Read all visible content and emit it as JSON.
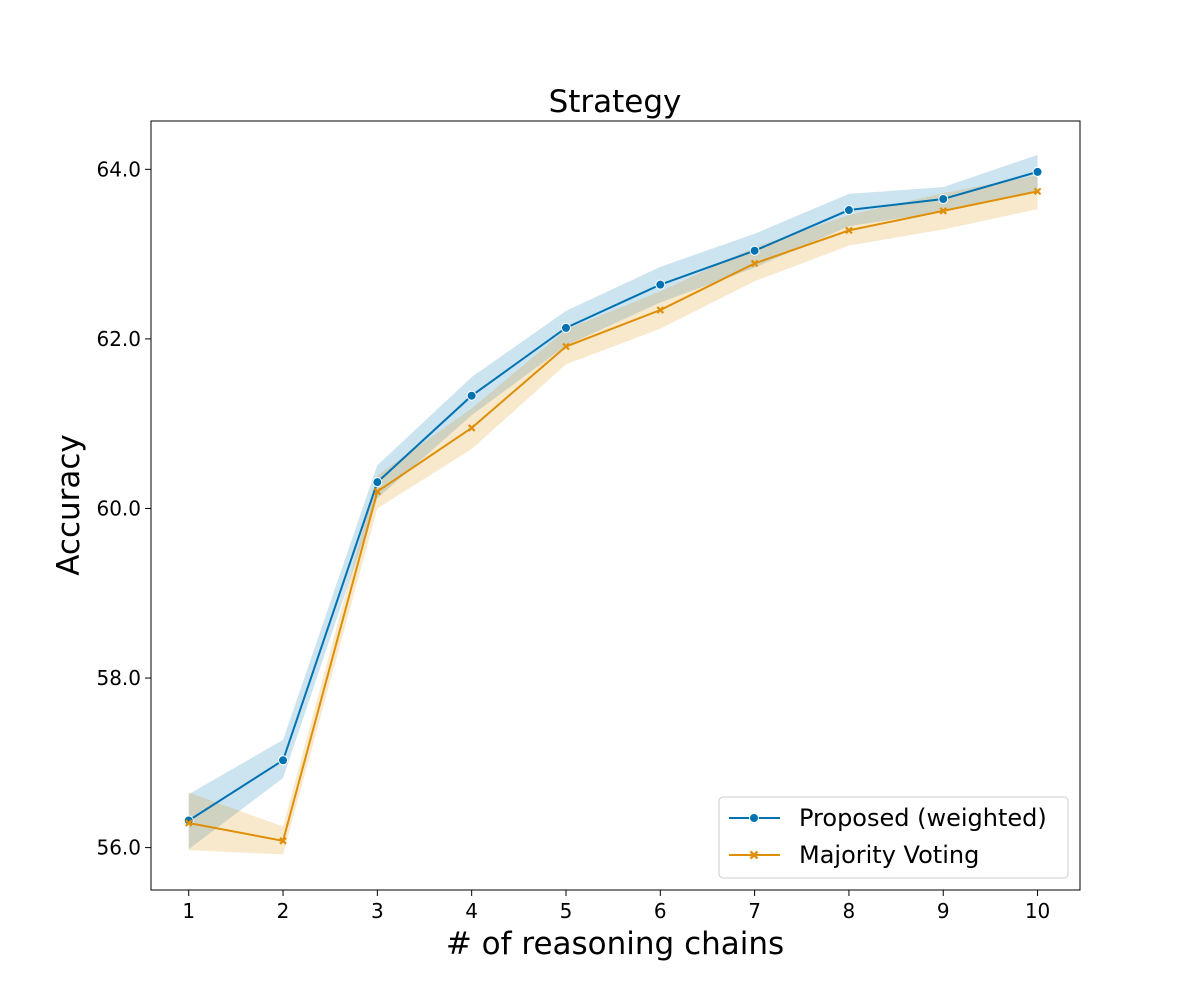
{
  "chart_data": {
    "type": "line",
    "title": "Strategy",
    "xlabel": "# of reasoning chains",
    "ylabel": "Accuracy",
    "x": [
      1,
      2,
      3,
      4,
      5,
      6,
      7,
      8,
      9,
      10
    ],
    "xlim": [
      0.6,
      10.45
    ],
    "ylim": [
      55.5,
      64.57
    ],
    "yticks": [
      56.0,
      58.0,
      60.0,
      62.0,
      64.0
    ],
    "ytick_labels": [
      "56.0",
      "58.0",
      "60.0",
      "62.0",
      "64.0"
    ],
    "xtick_labels": [
      "1",
      "2",
      "3",
      "4",
      "5",
      "6",
      "7",
      "8",
      "9",
      "10"
    ],
    "grid": false,
    "legend_position": "lower-right",
    "series": [
      {
        "name": "Proposed (weighted)",
        "color": "#0072b2",
        "marker": "circle",
        "values": [
          56.32,
          57.03,
          60.31,
          61.33,
          62.13,
          62.64,
          63.04,
          63.52,
          63.65,
          63.97
        ],
        "ci_lower": [
          55.98,
          56.82,
          60.12,
          61.1,
          61.92,
          62.43,
          62.84,
          63.33,
          63.5,
          63.75
        ],
        "ci_upper": [
          56.63,
          57.27,
          60.51,
          61.55,
          62.33,
          62.85,
          63.24,
          63.71,
          63.79,
          64.17
        ]
      },
      {
        "name": "Majority Voting",
        "color": "#de8f05",
        "marker": "x",
        "values": [
          56.29,
          56.08,
          60.2,
          60.95,
          61.91,
          62.34,
          62.89,
          63.28,
          63.51,
          63.74
        ],
        "ci_lower": [
          55.97,
          55.92,
          60.0,
          60.7,
          61.7,
          62.12,
          62.68,
          63.1,
          63.29,
          63.53
        ],
        "ci_upper": [
          56.65,
          56.25,
          60.39,
          61.18,
          62.11,
          62.56,
          63.08,
          63.46,
          63.72,
          63.93
        ]
      }
    ]
  }
}
